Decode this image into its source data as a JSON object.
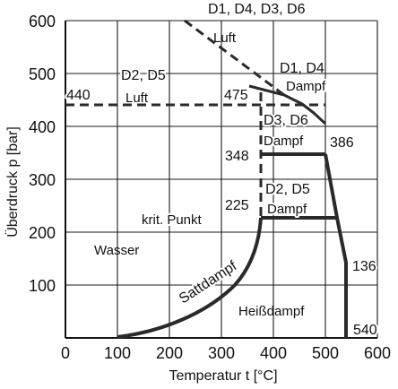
{
  "x_axis": {
    "title": "Temperatur t [°C]",
    "ticks": [
      "0",
      "100",
      "200",
      "300",
      "400",
      "500",
      "600"
    ]
  },
  "y_axis": {
    "title": "Überdruck p [bar]",
    "ticks": [
      "100",
      "200",
      "300",
      "400",
      "500",
      "600"
    ]
  },
  "regions": {
    "wasser": "Wasser",
    "heissdampf": "Heißdampf",
    "saettdampf": "Sattdampf",
    "krit_punkt": "krit. Punkt"
  },
  "labels": {
    "d1d4d3d6": "D1, D4, D3, D6",
    "luft_top": "Luft",
    "d2d5_top": "D2, D5",
    "luft_left": "Luft",
    "d1d4": "D1, D4",
    "dampf_d1d4": "Dampf",
    "d3d6": "D3, D6",
    "dampf_d3d6": "Dampf",
    "d2d5_mid": "D2, D5",
    "dampf_d2d5": "Dampf"
  },
  "values": {
    "v440": "440",
    "v475": "475",
    "v386": "386",
    "v348": "348",
    "v225": "225",
    "v136": "136",
    "v540": "540"
  }
}
